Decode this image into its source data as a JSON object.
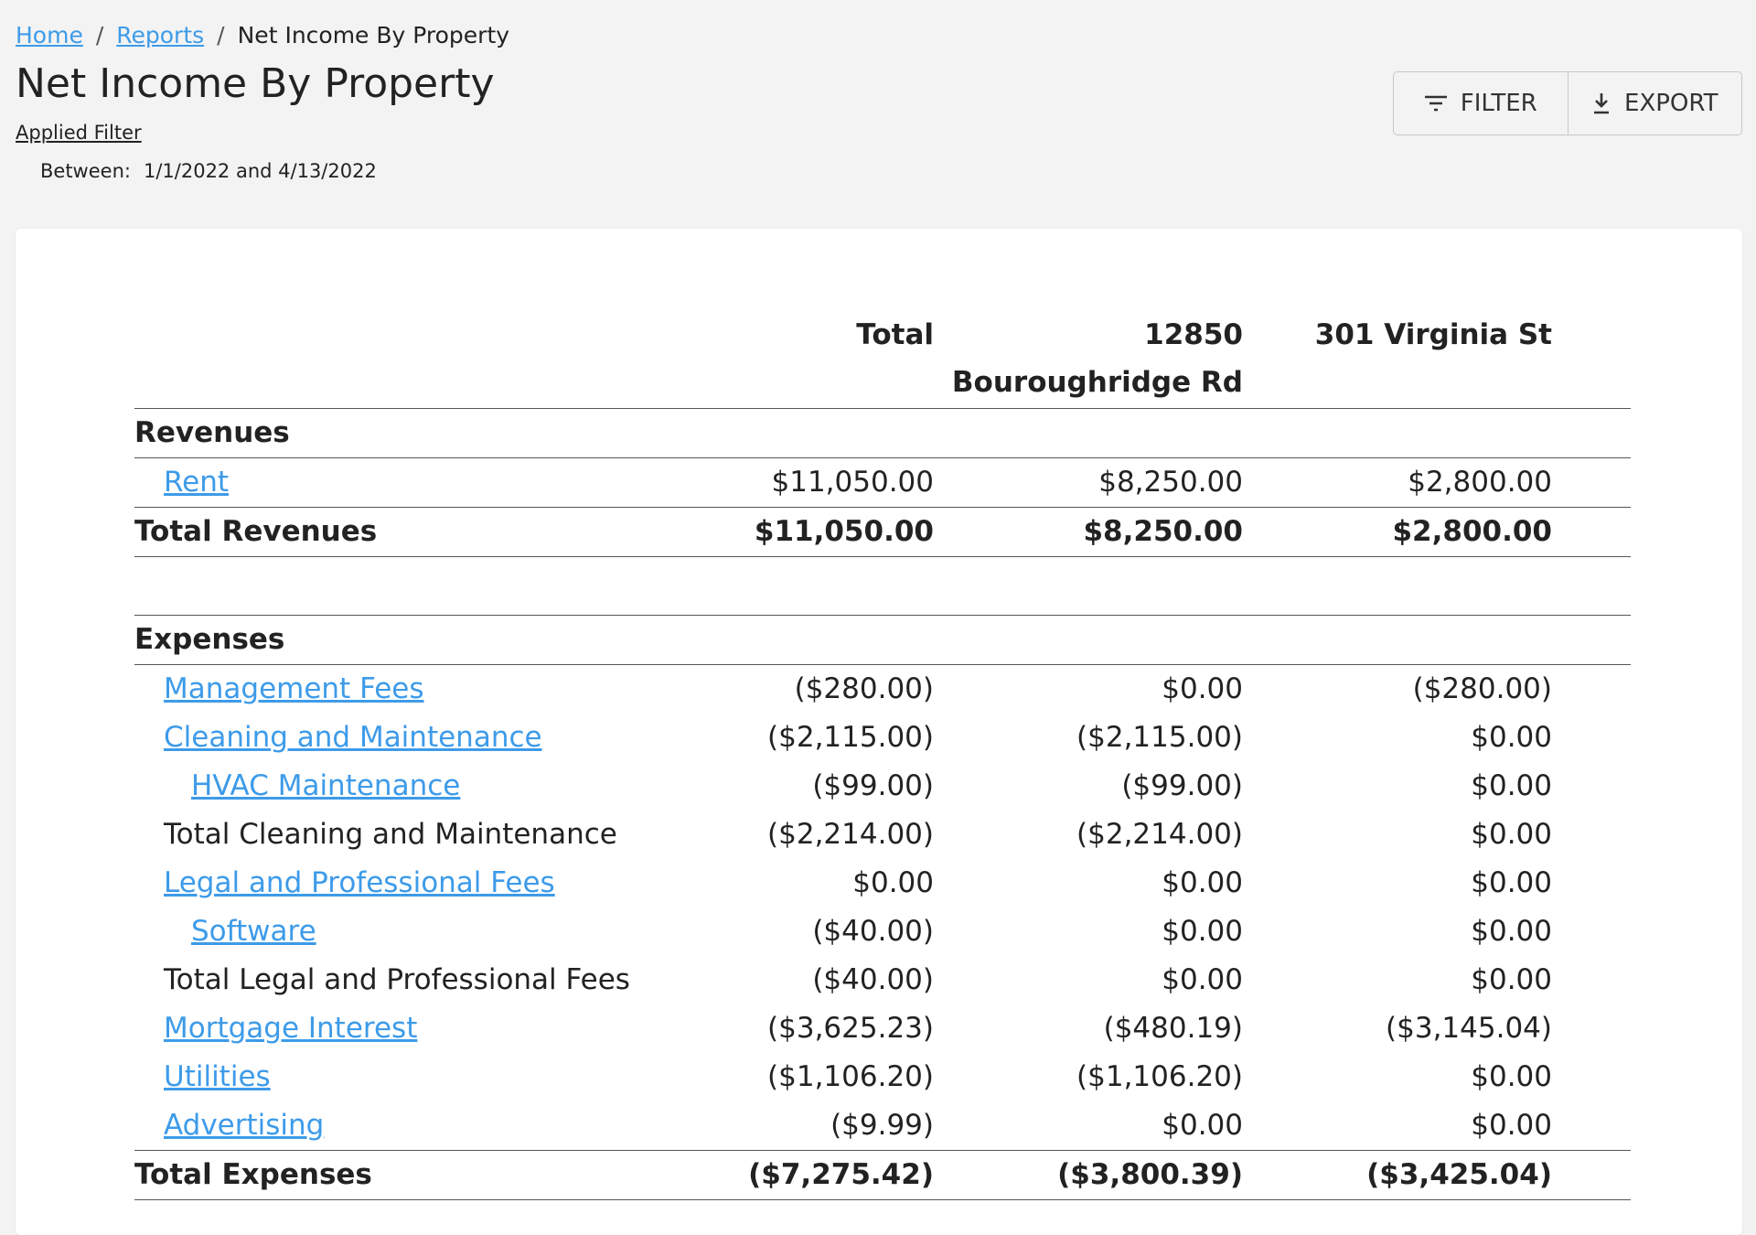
{
  "breadcrumb": [
    "Home",
    "Reports",
    "Net Income By Property"
  ],
  "header": {
    "title": "Net Income By Property",
    "applied_filter": "Applied Filter",
    "filter_label": "Between:",
    "filter_value": "1/1/2022 and 4/13/2022"
  },
  "buttons": [
    "FILTER",
    "EXPORT"
  ],
  "table": {
    "columns": [
      "Total",
      "12850 Bouroughridge Rd",
      "301 Virginia St"
    ],
    "rows": [
      [
        "Revenues"
      ],
      [
        "Rent",
        "$11,050.00",
        "$8,250.00",
        "$2,800.00"
      ],
      [
        "Total Revenues",
        "$11,050.00",
        "$8,250.00",
        "$2,800.00"
      ],
      [
        "Expenses"
      ],
      [
        "Management Fees",
        "($280.00)",
        "$0.00",
        "($280.00)"
      ],
      [
        "Cleaning and Maintenance",
        "($2,115.00)",
        "($2,115.00)",
        "$0.00"
      ],
      [
        "HVAC Maintenance",
        "($99.00)",
        "($99.00)",
        "$0.00"
      ],
      [
        "Total Cleaning and Maintenance",
        "($2,214.00)",
        "($2,214.00)",
        "$0.00"
      ],
      [
        "Legal and Professional Fees",
        "$0.00",
        "$0.00",
        "$0.00"
      ],
      [
        "Software",
        "($40.00)",
        "$0.00",
        "$0.00"
      ],
      [
        "Total Legal and Professional Fees",
        "($40.00)",
        "$0.00",
        "$0.00"
      ],
      [
        "Mortgage Interest",
        "($3,625.23)",
        "($480.19)",
        "($3,145.04)"
      ],
      [
        "Utilities",
        "($1,106.20)",
        "($1,106.20)",
        "$0.00"
      ],
      [
        "Advertising",
        "($9.99)",
        "$0.00",
        "$0.00"
      ],
      [
        "Total Expenses",
        "($7,275.42)",
        "($3,800.39)",
        "($3,425.04)"
      ]
    ]
  }
}
